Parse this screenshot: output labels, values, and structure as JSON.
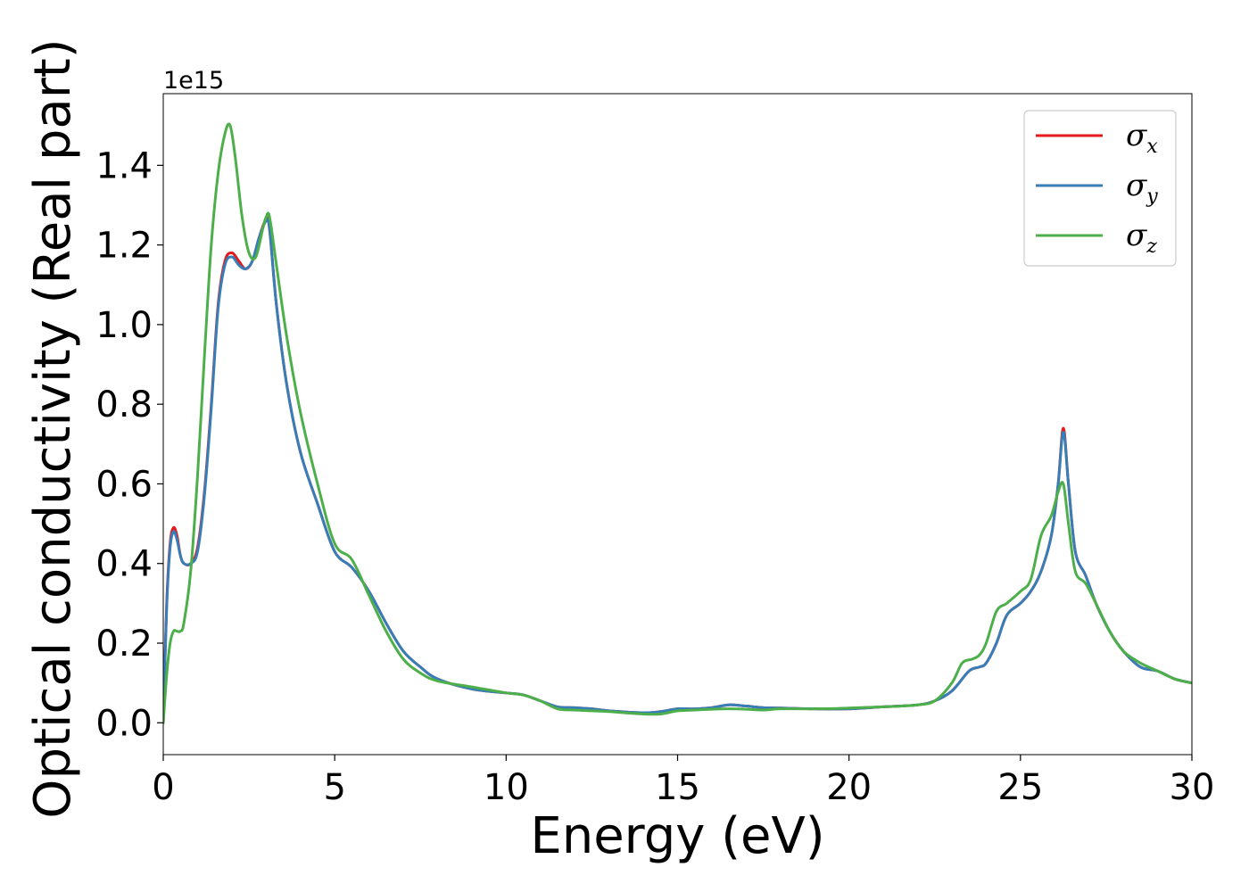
{
  "chart_data": {
    "type": "line",
    "title": "",
    "xlabel": "Energy (eV)",
    "ylabel": "Optical conductivity (Real part)",
    "y_offset_label": "1e15",
    "xlim": [
      0,
      30
    ],
    "ylim": [
      -0.08,
      1.58
    ],
    "x_ticks": [
      0,
      5,
      10,
      15,
      20,
      25,
      30
    ],
    "x_tick_labels": [
      "0",
      "5",
      "10",
      "15",
      "20",
      "25",
      "30"
    ],
    "y_ticks": [
      0.0,
      0.2,
      0.4,
      0.6,
      0.8,
      1.0,
      1.2,
      1.4
    ],
    "y_tick_labels": [
      "0.0",
      "0.2",
      "0.4",
      "0.6",
      "0.8",
      "1.0",
      "1.2",
      "1.4"
    ],
    "grid": false,
    "legend_position": "top-right",
    "series": [
      {
        "name": "σx",
        "legend_base": "σ",
        "legend_sub": "x",
        "color": "#e41a1c",
        "x": [
          0,
          0.1,
          0.2,
          0.3,
          0.4,
          0.5,
          0.6,
          0.8,
          1.0,
          1.2,
          1.4,
          1.6,
          1.8,
          2.0,
          2.2,
          2.4,
          2.6,
          2.8,
          3.0,
          3.1,
          3.3,
          3.6,
          4.0,
          4.5,
          5.0,
          5.5,
          6.0,
          6.5,
          7.0,
          7.5,
          8.0,
          9.0,
          10.0,
          10.5,
          11.0,
          11.5,
          12.0,
          12.5,
          13.0,
          14.0,
          14.5,
          15.0,
          15.5,
          16.0,
          16.5,
          17.0,
          17.5,
          18.0,
          19.0,
          20.0,
          21.0,
          22.0,
          22.5,
          23.0,
          23.5,
          23.8,
          24.0,
          24.3,
          24.6,
          25.0,
          25.3,
          25.6,
          25.9,
          26.1,
          26.25,
          26.4,
          26.6,
          26.9,
          27.2,
          27.6,
          28.0,
          28.5,
          29.0,
          29.5,
          30.0
        ],
        "values": [
          0.0,
          0.3,
          0.45,
          0.49,
          0.47,
          0.42,
          0.4,
          0.4,
          0.44,
          0.58,
          0.8,
          1.05,
          1.16,
          1.18,
          1.16,
          1.14,
          1.16,
          1.22,
          1.265,
          1.24,
          1.05,
          0.85,
          0.68,
          0.55,
          0.43,
          0.39,
          0.33,
          0.25,
          0.18,
          0.14,
          0.11,
          0.085,
          0.075,
          0.07,
          0.055,
          0.04,
          0.038,
          0.035,
          0.03,
          0.025,
          0.028,
          0.035,
          0.035,
          0.038,
          0.045,
          0.042,
          0.038,
          0.037,
          0.035,
          0.035,
          0.04,
          0.045,
          0.055,
          0.08,
          0.13,
          0.14,
          0.15,
          0.2,
          0.27,
          0.3,
          0.33,
          0.38,
          0.47,
          0.6,
          0.74,
          0.6,
          0.43,
          0.37,
          0.3,
          0.23,
          0.18,
          0.14,
          0.13,
          0.11,
          0.1
        ]
      },
      {
        "name": "σy",
        "legend_base": "σ",
        "legend_sub": "y",
        "color": "#377eb8",
        "x": [
          0,
          0.1,
          0.2,
          0.3,
          0.4,
          0.5,
          0.6,
          0.8,
          1.0,
          1.2,
          1.4,
          1.6,
          1.8,
          2.0,
          2.2,
          2.4,
          2.6,
          2.8,
          3.0,
          3.1,
          3.3,
          3.6,
          4.0,
          4.5,
          5.0,
          5.5,
          6.0,
          6.5,
          7.0,
          7.5,
          8.0,
          9.0,
          10.0,
          10.5,
          11.0,
          11.5,
          12.0,
          12.5,
          13.0,
          14.0,
          14.5,
          15.0,
          15.5,
          16.0,
          16.5,
          17.0,
          17.5,
          18.0,
          19.0,
          20.0,
          21.0,
          22.0,
          22.5,
          23.0,
          23.5,
          23.8,
          24.0,
          24.3,
          24.6,
          25.0,
          25.3,
          25.6,
          25.9,
          26.1,
          26.25,
          26.4,
          26.6,
          26.9,
          27.2,
          27.6,
          28.0,
          28.5,
          29.0,
          29.5,
          30.0
        ],
        "values": [
          0.0,
          0.29,
          0.44,
          0.48,
          0.46,
          0.42,
          0.4,
          0.4,
          0.43,
          0.57,
          0.79,
          1.04,
          1.15,
          1.17,
          1.15,
          1.14,
          1.16,
          1.22,
          1.26,
          1.24,
          1.05,
          0.85,
          0.68,
          0.55,
          0.43,
          0.39,
          0.33,
          0.25,
          0.18,
          0.14,
          0.11,
          0.085,
          0.075,
          0.07,
          0.055,
          0.04,
          0.038,
          0.035,
          0.03,
          0.025,
          0.028,
          0.035,
          0.035,
          0.038,
          0.045,
          0.042,
          0.038,
          0.037,
          0.035,
          0.035,
          0.04,
          0.045,
          0.055,
          0.08,
          0.13,
          0.14,
          0.15,
          0.2,
          0.27,
          0.3,
          0.33,
          0.38,
          0.47,
          0.6,
          0.73,
          0.6,
          0.43,
          0.37,
          0.3,
          0.23,
          0.18,
          0.14,
          0.13,
          0.11,
          0.1
        ]
      },
      {
        "name": "σz",
        "legend_base": "σ",
        "legend_sub": "z",
        "color": "#4daf4a",
        "x": [
          0,
          0.1,
          0.2,
          0.3,
          0.4,
          0.5,
          0.6,
          0.8,
          1.0,
          1.2,
          1.4,
          1.6,
          1.8,
          1.95,
          2.1,
          2.3,
          2.5,
          2.7,
          2.9,
          3.0,
          3.1,
          3.3,
          3.6,
          4.0,
          4.5,
          5.0,
          5.5,
          6.0,
          6.5,
          7.0,
          7.5,
          8.0,
          9.0,
          10.0,
          10.5,
          11.0,
          11.5,
          12.0,
          12.5,
          13.0,
          14.0,
          14.5,
          15.0,
          15.5,
          16.0,
          16.5,
          17.0,
          17.5,
          18.0,
          19.0,
          20.0,
          21.0,
          22.0,
          22.5,
          23.0,
          23.3,
          23.6,
          23.8,
          24.0,
          24.3,
          24.6,
          25.0,
          25.3,
          25.6,
          25.9,
          26.1,
          26.25,
          26.4,
          26.6,
          26.9,
          27.2,
          27.6,
          28.0,
          28.5,
          29.0,
          29.5,
          30.0
        ],
        "values": [
          0.0,
          0.12,
          0.2,
          0.23,
          0.23,
          0.23,
          0.25,
          0.38,
          0.62,
          0.92,
          1.2,
          1.38,
          1.48,
          1.5,
          1.42,
          1.27,
          1.18,
          1.17,
          1.24,
          1.27,
          1.27,
          1.15,
          0.97,
          0.78,
          0.6,
          0.45,
          0.41,
          0.32,
          0.23,
          0.16,
          0.125,
          0.105,
          0.09,
          0.075,
          0.07,
          0.055,
          0.035,
          0.032,
          0.03,
          0.028,
          0.022,
          0.022,
          0.03,
          0.032,
          0.034,
          0.035,
          0.034,
          0.032,
          0.035,
          0.035,
          0.037,
          0.04,
          0.045,
          0.055,
          0.1,
          0.15,
          0.16,
          0.17,
          0.2,
          0.28,
          0.3,
          0.33,
          0.36,
          0.47,
          0.52,
          0.58,
          0.6,
          0.5,
          0.38,
          0.35,
          0.3,
          0.23,
          0.18,
          0.15,
          0.13,
          0.11,
          0.1
        ]
      }
    ]
  }
}
